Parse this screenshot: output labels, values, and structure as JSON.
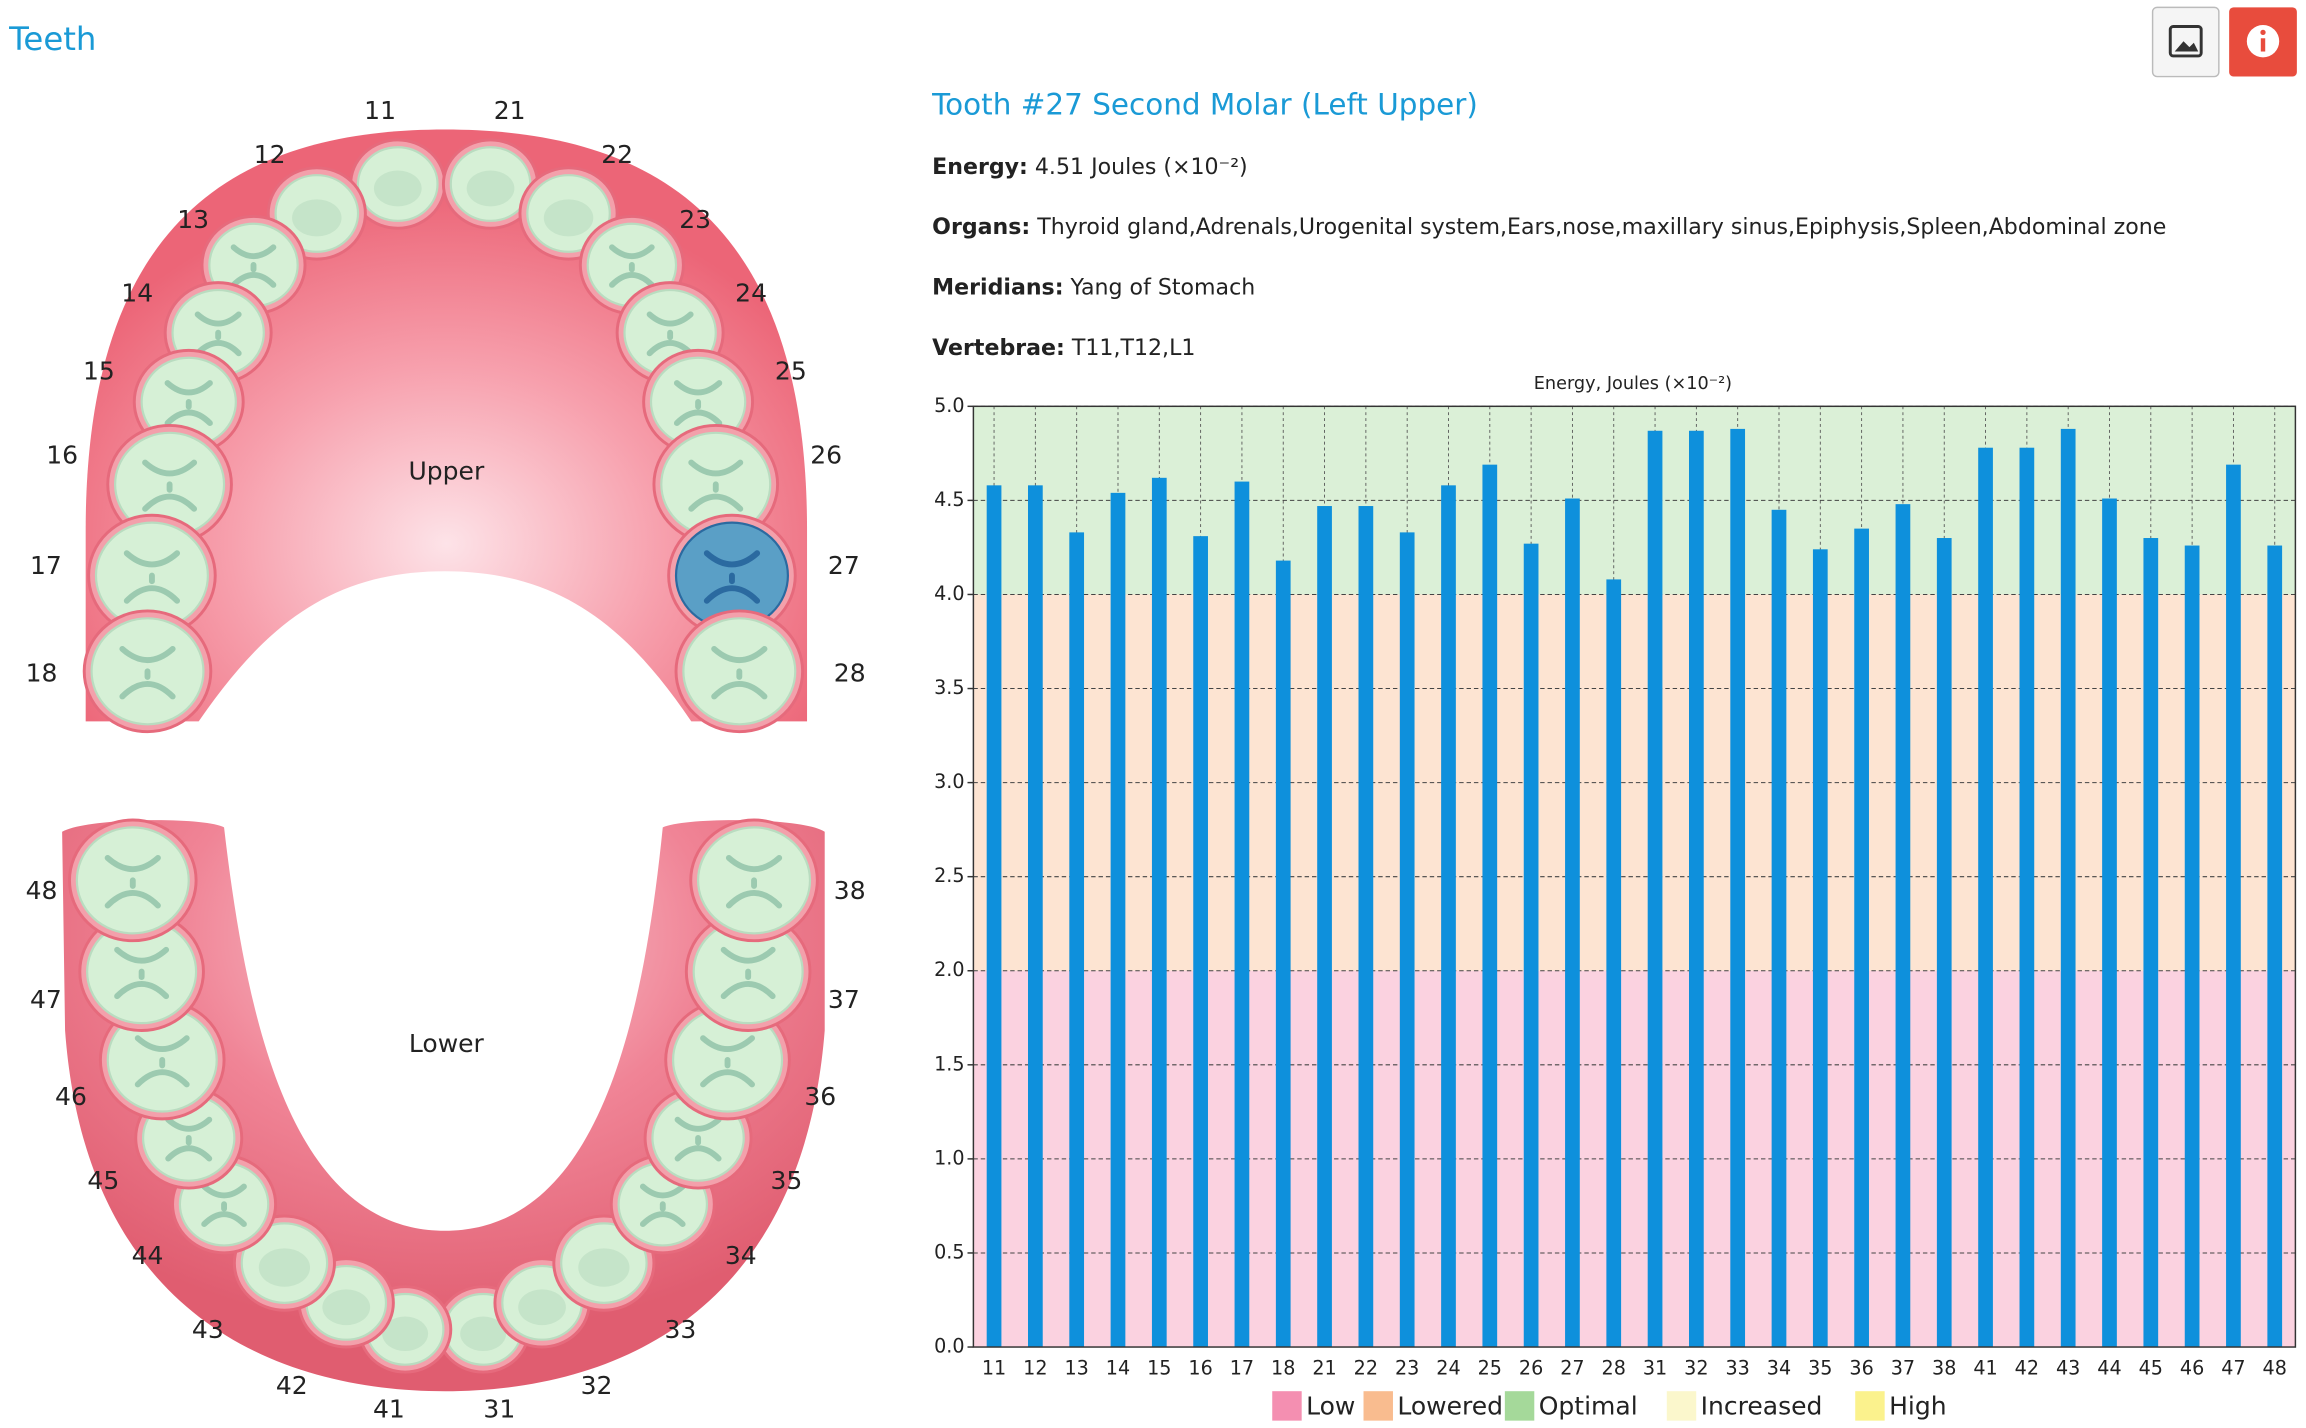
{
  "header": {
    "title": "Teeth"
  },
  "diagram": {
    "upper": {
      "label": "Upper",
      "teeth": [
        "11",
        "12",
        "13",
        "14",
        "15",
        "16",
        "17",
        "18",
        "21",
        "22",
        "23",
        "24",
        "25",
        "26",
        "27",
        "28"
      ]
    },
    "lower": {
      "label": "Lower",
      "teeth": [
        "31",
        "32",
        "33",
        "34",
        "35",
        "36",
        "37",
        "38",
        "41",
        "42",
        "43",
        "44",
        "45",
        "46",
        "47",
        "48"
      ]
    },
    "selected": "27"
  },
  "details": {
    "title": "Tooth #27 Second Molar (Left Upper)",
    "energy": {
      "label": "Energy:",
      "value": 4.51,
      "unit": "Joules (×10⁻²)"
    },
    "organs": {
      "label": "Organs:",
      "value": "Thyroid gland,Adrenals,Urogenital system,Ears,nose,maxillary sinus,Epiphysis,Spleen,Abdominal zone"
    },
    "meridians": {
      "label": "Meridians:",
      "value": "Yang of Stomach"
    },
    "vertebrae": {
      "label": "Vertebrae:",
      "value": "T11,T12,L1"
    }
  },
  "chart_data": {
    "type": "bar",
    "title": "Energy, Joules (×10⁻²)",
    "categories": [
      "11",
      "12",
      "13",
      "14",
      "15",
      "16",
      "17",
      "18",
      "21",
      "22",
      "23",
      "24",
      "25",
      "26",
      "27",
      "28",
      "31",
      "32",
      "33",
      "34",
      "35",
      "36",
      "37",
      "38",
      "41",
      "42",
      "43",
      "44",
      "45",
      "46",
      "47",
      "48"
    ],
    "values": [
      4.58,
      4.58,
      4.33,
      4.54,
      4.62,
      4.31,
      4.6,
      4.18,
      4.47,
      4.47,
      4.33,
      4.58,
      4.69,
      4.27,
      4.51,
      4.08,
      4.87,
      4.87,
      4.88,
      4.45,
      4.24,
      4.35,
      4.48,
      4.3,
      4.78,
      4.78,
      4.88,
      4.51,
      4.3,
      4.26,
      4.69,
      4.26
    ],
    "color": "#0e90dc",
    "ylim": [
      0,
      5
    ],
    "yticks": [
      {
        "value": 0,
        "label": "0.0"
      },
      0.5,
      {
        "value": 1,
        "label": "1.0"
      },
      1.5,
      {
        "value": 2,
        "label": "2.0"
      },
      2.5,
      {
        "value": 3,
        "label": "3.0"
      },
      3.5,
      {
        "value": 4,
        "label": "4.0"
      },
      4.5,
      {
        "value": 5,
        "label": "5.0"
      }
    ],
    "grid": true,
    "zones": [
      {
        "name": "Low",
        "color": "#f48fb1",
        "range": [
          0,
          2
        ]
      },
      {
        "name": "Lowered",
        "color": "#f9bc8f",
        "range": [
          2,
          4
        ]
      },
      {
        "name": "Optimal",
        "color": "#a5d99a",
        "range": [
          4,
          5
        ]
      },
      {
        "name": "Increased",
        "color": "#fbf7cc"
      },
      {
        "name": "High",
        "color": "#fbf28d"
      }
    ]
  }
}
